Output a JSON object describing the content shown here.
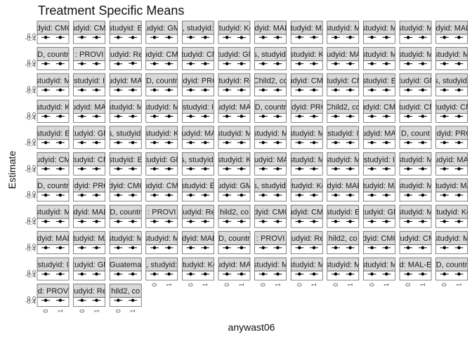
{
  "chart_data": {
    "type": "scatter",
    "title": "Treatment Specific Means",
    "xlabel": "anywast06",
    "ylabel": "Estimate",
    "x_ticks": [
      "0",
      "1"
    ],
    "y_ticks": [
      "-0.4",
      "0.0"
    ],
    "strip_labels": [
      "studyid: CMC-V",
      "studyid: CMIN",
      "studyid: E",
      "studyid: GMS",
      ", studyid:",
      "studyid: Ke",
      "studyid: MAL-E",
      "studyid: MA",
      "studyid: M",
      "studyid: M",
      "studyid: M",
      "studyid: MAL-E",
      "D, countr",
      ": PROVI",
      "studyid: Res",
      "studyid: CMC-",
      "studyid: CM",
      "studyid: GM",
      "s, studyid:",
      "studyid: K",
      "studyid: MAL",
      "studyid: M",
      "studyid: M",
      "studyid: M",
      "studyid: M",
      "studyid: I",
      "studyid: MAL-",
      "D, countr",
      "studyid: PROV",
      "studyid: Re",
      "Child2, co",
      "studyid: CMC-",
      "studyid: CM",
      "studyid: E",
      "studyid: GM",
      "s, studyid:",
      "studyid: K",
      "studyid: MAL-",
      "studyid: M",
      "studyid: M",
      "studyid: I",
      "studyid: MAL-",
      "D, countr",
      "studyid: PROV",
      "Child2, co",
      "studyid: CMC-",
      "studyid: CM",
      "studyid: CM",
      "studyid: E",
      "studyid: GM",
      "s, studyid:",
      "studyid: K",
      "studyid: MAL",
      "studyid: M",
      "studyid: M",
      "studyid: M",
      "studyid: I",
      "studyid: MAL-",
      "D, count",
      "studyid: PROV",
      "studyid: CMC",
      "studyid: CM",
      "studyid: E",
      "studyid: GM",
      "s, studyid:",
      "studyid: K",
      "studyid: MAL",
      "studyid: M",
      "studyid: M",
      "studyid: I",
      "studyid: M",
      "studyid: MAL-",
      "D, countr",
      "studyid: PROV",
      "studyid: CMC-V",
      "studyid: CMIN",
      "studyid: E",
      "studyid: GMS",
      "s, studyid:",
      "studyid: Ke",
      "studyid: MAL-E",
      "studyid: MA",
      "studyid: M",
      "studyid: MA",
      "studyid: M",
      "studyid: MAL-E",
      "D, countr",
      ": PROVI",
      "studyid: Res",
      "hild2, co",
      "studyid: CMC-V",
      "studyid: CMIN",
      "studyid: E",
      "studyid: GM",
      "studyid: M",
      "studyid: Ke",
      "studyid: MAL-E",
      "studyid: MA",
      "studyid: M",
      "studyid: M",
      "studyid: MAL-E",
      "D, countr",
      ": PROVI",
      "studyid: Res",
      "hild2, co",
      "studyid: CMC-V",
      "studyid: CMI",
      "studyid: M",
      "studyid: I",
      "studyid: GM",
      "Guatema",
      ", studyid:",
      "studyid: Ke",
      "studyid: MAL-",
      "studyid: M",
      "studyid: M",
      "studyid: M",
      "studyid: M",
      "d: MAL-E",
      "D, countr",
      "d: PROV",
      "studyid: Res",
      "hild2, co"
    ],
    "values_per_panel": [
      [
        -0.02,
        -0.02
      ],
      [
        -0.01,
        -0.02
      ],
      [
        -0.02,
        -0.03
      ],
      [
        -0.02,
        -0.02
      ],
      [
        -0.01,
        -0.02
      ],
      [
        -0.02,
        -0.04
      ],
      [
        -0.02,
        -0.02
      ],
      [
        0.0,
        -0.01
      ],
      [
        -0.02,
        -0.01
      ],
      [
        -0.01,
        -0.02
      ],
      [
        -0.03,
        -0.02
      ],
      [
        -0.02,
        -0.02
      ],
      [
        -0.02,
        -0.02
      ],
      [
        -0.02,
        -0.02
      ],
      [
        -0.03,
        0.02
      ],
      [
        -0.02,
        -0.02
      ],
      [
        -0.02,
        -0.02
      ],
      [
        -0.02,
        -0.02
      ],
      [
        -0.02,
        -0.02
      ],
      [
        -0.02,
        -0.02
      ],
      [
        -0.02,
        -0.02
      ],
      [
        -0.02,
        -0.02
      ],
      [
        -0.02,
        -0.02
      ],
      [
        -0.02,
        -0.02
      ],
      [
        -0.02,
        -0.02
      ],
      [
        -0.02,
        -0.02
      ],
      [
        -0.02,
        -0.02
      ],
      [
        -0.02,
        -0.02
      ],
      [
        -0.02,
        -0.02
      ],
      [
        -0.01,
        -0.02
      ],
      [
        -0.02,
        -0.02
      ],
      [
        -0.02,
        -0.02
      ],
      [
        -0.02,
        -0.02
      ],
      [
        -0.02,
        -0.02
      ],
      [
        -0.02,
        -0.02
      ],
      [
        -0.02,
        -0.02
      ],
      [
        -0.02,
        -0.02
      ],
      [
        -0.02,
        -0.02
      ],
      [
        -0.02,
        -0.02
      ],
      [
        -0.02,
        -0.02
      ],
      [
        -0.02,
        -0.02
      ],
      [
        -0.02,
        -0.02
      ],
      [
        -0.02,
        -0.03
      ],
      [
        -0.02,
        -0.02
      ],
      [
        -0.02,
        -0.02
      ],
      [
        -0.02,
        -0.02
      ],
      [
        -0.02,
        -0.02
      ],
      [
        -0.02,
        -0.02
      ],
      [
        -0.02,
        -0.02
      ],
      [
        -0.02,
        -0.02
      ],
      [
        -0.02,
        -0.02
      ],
      [
        -0.02,
        -0.02
      ],
      [
        -0.02,
        -0.02
      ],
      [
        -0.02,
        -0.02
      ],
      [
        -0.02,
        -0.02
      ],
      [
        -0.02,
        -0.02
      ],
      [
        -0.02,
        -0.02
      ],
      [
        -0.02,
        -0.02
      ],
      [
        -0.02,
        -0.02
      ],
      [
        -0.02,
        -0.02
      ],
      [
        -0.02,
        -0.02
      ],
      [
        -0.02,
        -0.02
      ],
      [
        -0.02,
        -0.02
      ],
      [
        -0.02,
        -0.02
      ],
      [
        -0.02,
        -0.02
      ],
      [
        -0.02,
        -0.02
      ],
      [
        -0.02,
        -0.02
      ],
      [
        -0.02,
        -0.02
      ],
      [
        -0.02,
        -0.02
      ],
      [
        -0.02,
        -0.02
      ],
      [
        -0.02,
        -0.02
      ],
      [
        -0.02,
        -0.02
      ],
      [
        -0.02,
        -0.02
      ],
      [
        -0.02,
        -0.02
      ],
      [
        -0.02,
        -0.02
      ],
      [
        -0.02,
        -0.02
      ],
      [
        -0.02,
        -0.02
      ],
      [
        -0.02,
        -0.02
      ],
      [
        -0.02,
        -0.02
      ],
      [
        -0.02,
        -0.02
      ],
      [
        -0.02,
        -0.02
      ],
      [
        -0.02,
        -0.02
      ],
      [
        -0.02,
        -0.02
      ],
      [
        -0.02,
        -0.02
      ],
      [
        -0.02,
        -0.02
      ],
      [
        -0.02,
        -0.02
      ],
      [
        -0.02,
        -0.02
      ],
      [
        -0.02,
        -0.02
      ],
      [
        -0.02,
        -0.02
      ],
      [
        -0.02,
        -0.02
      ],
      [
        -0.02,
        -0.02
      ],
      [
        -0.02,
        -0.02
      ],
      [
        -0.02,
        -0.02
      ],
      [
        -0.02,
        -0.02
      ],
      [
        -0.02,
        -0.02
      ],
      [
        -0.02,
        -0.02
      ],
      [
        -0.02,
        -0.02
      ],
      [
        -0.02,
        -0.02
      ],
      [
        -0.02,
        -0.02
      ],
      [
        -0.02,
        -0.02
      ],
      [
        -0.02,
        -0.02
      ],
      [
        -0.02,
        -0.02
      ],
      [
        -0.02,
        -0.02
      ],
      [
        -0.02,
        -0.02
      ],
      [
        -0.02,
        -0.02
      ],
      [
        -0.02,
        -0.02
      ],
      [
        -0.02,
        -0.02
      ],
      [
        -0.02,
        -0.02
      ],
      [
        -0.02,
        -0.02
      ],
      [
        -0.02,
        -0.02
      ],
      [
        -0.02,
        -0.02
      ],
      [
        -0.02,
        -0.02
      ],
      [
        -0.02,
        -0.02
      ],
      [
        -0.02,
        -0.02
      ],
      [
        -0.02,
        -0.02
      ],
      [
        -0.02,
        -0.02
      ],
      [
        -0.02,
        -0.02
      ],
      [
        -0.02,
        -0.02
      ],
      [
        -0.02,
        -0.02
      ],
      [
        -0.02,
        -0.02
      ],
      [
        -0.02,
        -0.02
      ],
      [
        -0.02,
        -0.02
      ],
      [
        -0.02,
        -0.02
      ]
    ],
    "ylim": [
      -0.6,
      0.2
    ],
    "grid": true,
    "legend": "none",
    "colors": {
      "point": "#000000",
      "strip_fill": "#d9d9d9",
      "strip_border": "#333333",
      "panel_border": "#333333",
      "grid": "#ebebeb"
    }
  }
}
